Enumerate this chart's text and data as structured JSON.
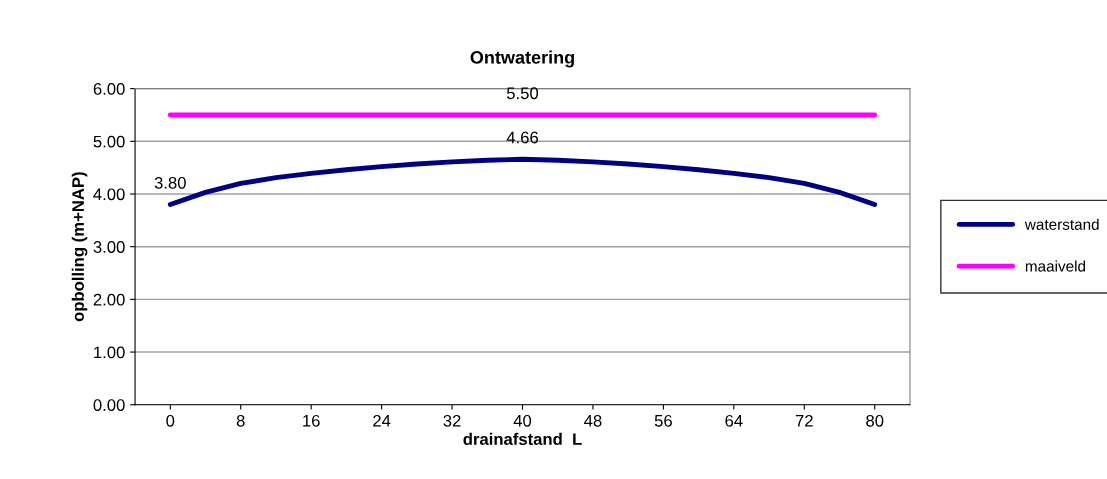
{
  "chart_data": {
    "type": "line",
    "title": "Ontwatering",
    "xlabel": "drainafstand  L",
    "ylabel": "opbolling (m+NAP)",
    "x": [
      0,
      4,
      8,
      12,
      16,
      20,
      24,
      28,
      32,
      36,
      40,
      44,
      48,
      52,
      56,
      60,
      64,
      68,
      72,
      76,
      80
    ],
    "series": [
      {
        "name": "waterstand",
        "color": "#000080",
        "values": [
          3.8,
          4.03,
          4.2,
          4.31,
          4.39,
          4.46,
          4.52,
          4.57,
          4.61,
          4.64,
          4.66,
          4.64,
          4.61,
          4.57,
          4.52,
          4.46,
          4.39,
          4.31,
          4.2,
          4.03,
          3.8
        ],
        "value_labels": [
          "3.80",
          null,
          null,
          null,
          null,
          null,
          null,
          null,
          null,
          null,
          "4.66",
          null,
          null,
          null,
          null,
          null,
          null,
          null,
          null,
          null,
          null
        ]
      },
      {
        "name": "maaiveld",
        "color": "#ff00ff",
        "values": [
          5.5,
          5.5,
          5.5,
          5.5,
          5.5,
          5.5,
          5.5,
          5.5,
          5.5,
          5.5,
          5.5,
          5.5,
          5.5,
          5.5,
          5.5,
          5.5,
          5.5,
          5.5,
          5.5,
          5.5,
          5.5
        ],
        "value_labels": [
          null,
          null,
          null,
          null,
          null,
          null,
          null,
          null,
          null,
          null,
          "5.50",
          null,
          null,
          null,
          null,
          null,
          null,
          null,
          null,
          null,
          null
        ]
      }
    ],
    "xlim": [
      -4,
      84
    ],
    "xticks": [
      0,
      8,
      16,
      24,
      32,
      40,
      48,
      56,
      64,
      72,
      80
    ],
    "ylim": [
      0,
      6
    ],
    "yticks": [
      {
        "value": 0,
        "label": "0.00"
      },
      {
        "value": 1,
        "label": "1.00"
      },
      {
        "value": 2,
        "label": "2.00"
      },
      {
        "value": 3,
        "label": "3.00"
      },
      {
        "value": 4,
        "label": "4.00"
      },
      {
        "value": 5,
        "label": "5.00"
      },
      {
        "value": 6,
        "label": "6.00"
      }
    ],
    "grid": "y",
    "legend": "right",
    "marker": "none",
    "line_style": "solid"
  }
}
